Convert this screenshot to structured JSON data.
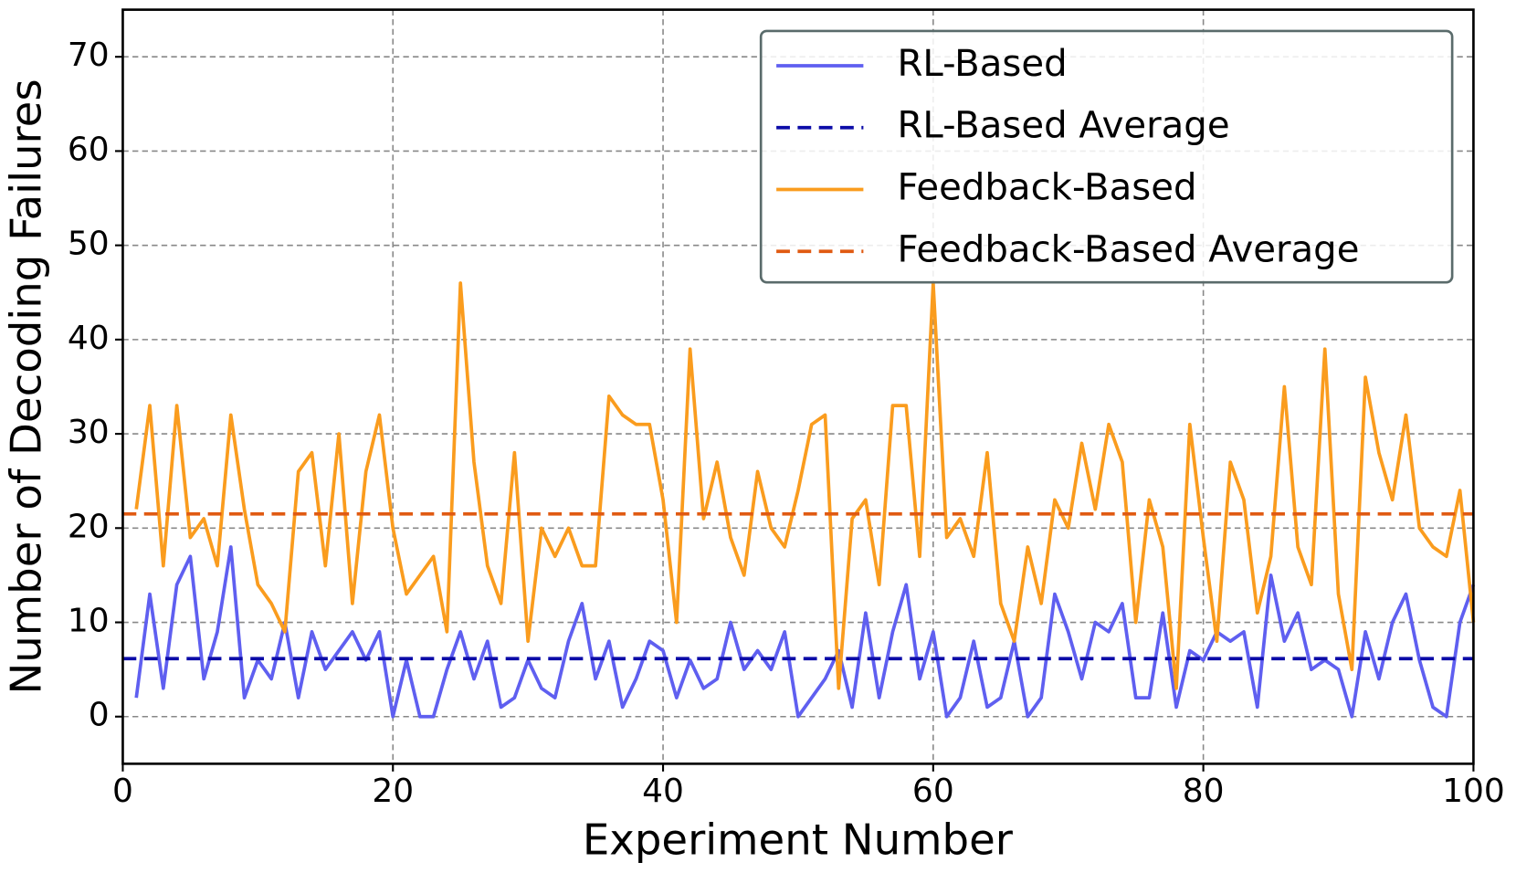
{
  "chart_data": {
    "type": "line",
    "xlabel": "Experiment Number",
    "ylabel": "Number of Decoding Failures",
    "x": [
      1,
      2,
      3,
      4,
      5,
      6,
      7,
      8,
      9,
      10,
      11,
      12,
      13,
      14,
      15,
      16,
      17,
      18,
      19,
      20,
      21,
      22,
      23,
      24,
      25,
      26,
      27,
      28,
      29,
      30,
      31,
      32,
      33,
      34,
      35,
      36,
      37,
      38,
      39,
      40,
      41,
      42,
      43,
      44,
      45,
      46,
      47,
      48,
      49,
      50,
      51,
      52,
      53,
      54,
      55,
      56,
      57,
      58,
      59,
      60,
      61,
      62,
      63,
      64,
      65,
      66,
      67,
      68,
      69,
      70,
      71,
      72,
      73,
      74,
      75,
      76,
      77,
      78,
      79,
      80,
      81,
      82,
      83,
      84,
      85,
      86,
      87,
      88,
      89,
      90,
      91,
      92,
      93,
      94,
      95,
      96,
      97,
      98,
      99,
      100
    ],
    "series": [
      {
        "name": "RL-Based",
        "color": "#5f5ff0",
        "values": [
          2,
          13,
          3,
          14,
          17,
          4,
          9,
          18,
          2,
          6,
          4,
          10,
          2,
          9,
          5,
          7,
          9,
          6,
          9,
          0,
          6,
          0,
          0,
          5,
          9,
          4,
          8,
          1,
          2,
          6,
          3,
          2,
          8,
          12,
          4,
          8,
          1,
          4,
          8,
          7,
          2,
          6,
          3,
          4,
          10,
          5,
          7,
          5,
          9,
          0,
          2,
          4,
          7,
          1,
          11,
          2,
          9,
          14,
          4,
          9,
          0,
          2,
          8,
          1,
          2,
          8,
          0,
          2,
          13,
          9,
          4,
          10,
          9,
          12,
          2,
          2,
          11,
          1,
          7,
          6,
          9,
          8,
          9,
          1,
          15,
          8,
          11,
          5,
          6,
          5,
          0,
          9,
          4,
          10,
          13,
          6,
          1,
          0,
          10,
          14
        ]
      },
      {
        "name": "RL-Based Average",
        "color": "#0c0ca8",
        "value": 6.15,
        "dashed": true
      },
      {
        "name": "Feedback-Based",
        "color": "#fa9c1e",
        "values": [
          22,
          33,
          16,
          33,
          19,
          21,
          16,
          32,
          22,
          14,
          12,
          9,
          26,
          28,
          16,
          30,
          12,
          26,
          32,
          20,
          13,
          15,
          17,
          9,
          46,
          27,
          16,
          12,
          28,
          8,
          20,
          17,
          20,
          16,
          16,
          34,
          32,
          31,
          31,
          23,
          10,
          39,
          21,
          27,
          19,
          15,
          26,
          20,
          18,
          24,
          31,
          32,
          3,
          21,
          23,
          14,
          33,
          33,
          17,
          46,
          19,
          21,
          17,
          28,
          12,
          8,
          18,
          12,
          23,
          20,
          29,
          22,
          31,
          27,
          10,
          23,
          18,
          3,
          31,
          19,
          8,
          27,
          23,
          11,
          17,
          35,
          18,
          14,
          39,
          13,
          5,
          36,
          28,
          23,
          32,
          20,
          18,
          17,
          24,
          10
        ]
      },
      {
        "name": "Feedback-Based Average",
        "color": "#e05a12",
        "value": 21.5,
        "dashed": true
      }
    ],
    "xlim": [
      0,
      100
    ],
    "xticks": [
      0,
      20,
      40,
      60,
      80,
      100
    ],
    "ylim": [
      -5,
      75
    ],
    "yticks": [
      0,
      10,
      20,
      30,
      40,
      50,
      60,
      70
    ],
    "grid": true,
    "legend": "upper right"
  }
}
